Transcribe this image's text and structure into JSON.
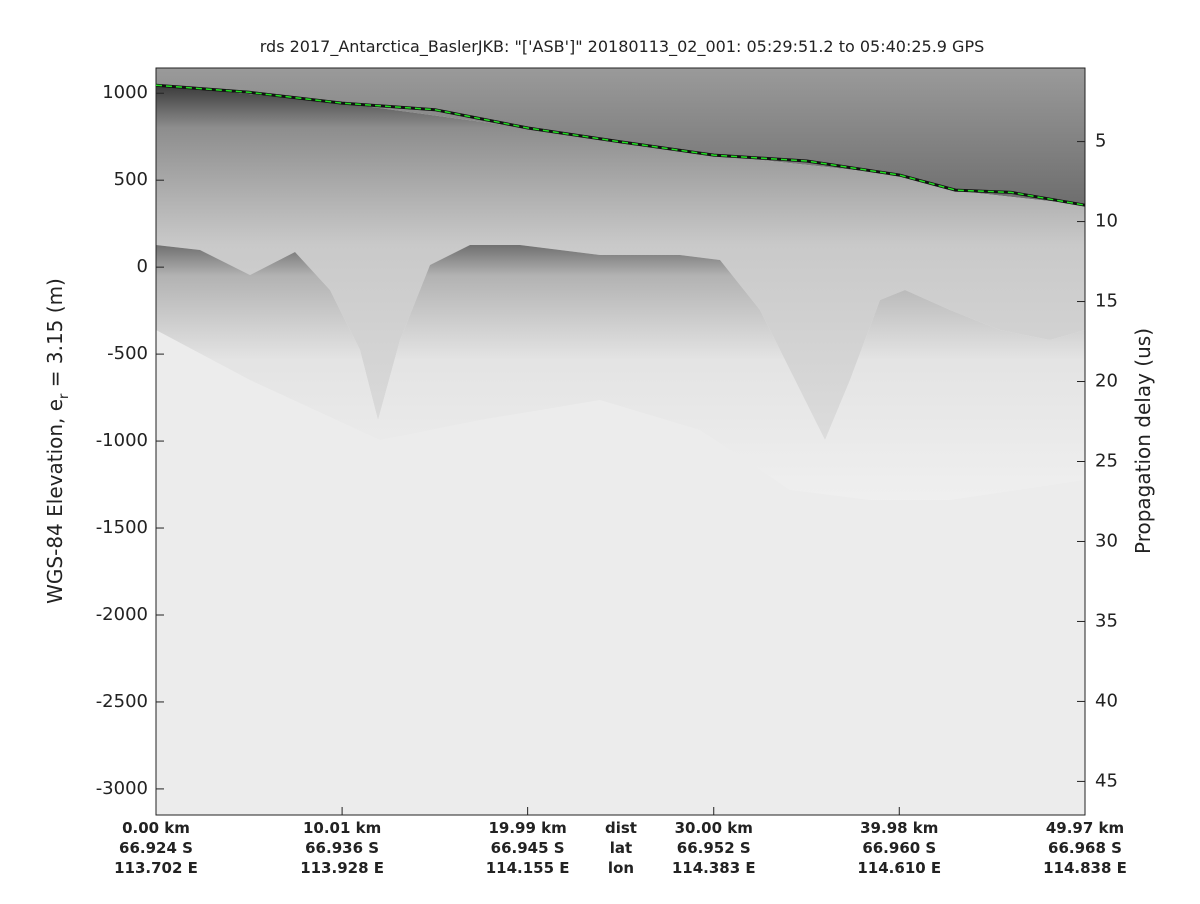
{
  "chart_data": {
    "type": "echogram",
    "title": "rds 2017_Antarctica_BaslerJKB: \"['ASB']\"  20180113_02_001: 05:29:51.2 to 05:40:25.9 GPS",
    "y_label_parts": [
      "WGS-84 Elevation, e",
      "r",
      " = 3.15 (m)"
    ],
    "y2_label": "Propagation delay (us)",
    "ylim": [
      -3150,
      1145
    ],
    "yticks": [
      1000,
      500,
      0,
      -500,
      -1000,
      -1500,
      -2000,
      -2500,
      -3000
    ],
    "y2lim": [
      0.4,
      47.1
    ],
    "y2_direction": "reverse",
    "y2ticks": [
      5,
      10,
      15,
      20,
      25,
      30,
      35,
      40,
      45
    ],
    "xlim": [
      0,
      49.97
    ],
    "xticks": [
      {
        "value": 0,
        "label": "0.00 km"
      },
      {
        "value": 10.01,
        "label": "10.01 km"
      },
      {
        "value": 19.99,
        "label": "19.99 km"
      },
      {
        "value": 30,
        "label": "30.00 km"
      },
      {
        "value": 39.98,
        "label": "39.98 km"
      },
      {
        "value": 49.97,
        "label": "49.97 km"
      }
    ],
    "xtick_lat": [
      "66.924 S",
      "66.936 S",
      "66.945 S",
      "66.952 S",
      "66.960 S",
      "66.968 S"
    ],
    "xtick_lon": [
      "113.702 E",
      "113.928 E",
      "114.155 E",
      "114.383 E",
      "114.610 E",
      "114.838 E"
    ],
    "x_row_labels": [
      "dist",
      "lat",
      "lon"
    ],
    "surface": {
      "color": "#22dd22",
      "x": [
        0,
        5,
        10,
        15,
        20,
        25,
        30,
        35,
        40,
        43,
        46,
        49.97
      ],
      "values": [
        1046,
        1005,
        943,
        905,
        800,
        720,
        644,
        610,
        529,
        443,
        430,
        356
      ]
    }
  }
}
